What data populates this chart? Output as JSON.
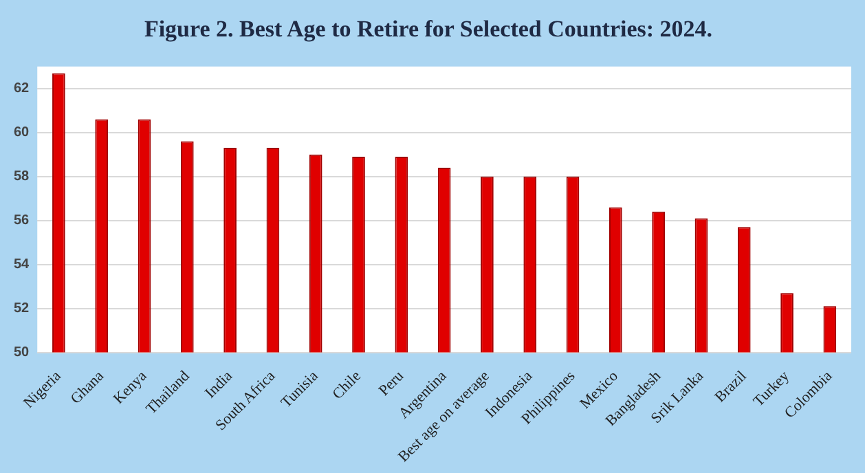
{
  "chart_data": {
    "type": "bar",
    "title": "Figure 2. Best Age to Retire for Selected Countries: 2024.",
    "categories": [
      "Nigeria",
      "Ghana",
      "Kenya",
      "Thailand",
      "India",
      "South Africa",
      "Tunisia",
      "Chile",
      "Peru",
      "Argentina",
      "Best age on average",
      "Indonesia",
      "Philippines",
      "Mexico",
      "Bangladesh",
      "Srik Lanka",
      "Brazil",
      "Turkey",
      "Colombia"
    ],
    "values": [
      62.7,
      60.6,
      60.6,
      59.6,
      59.3,
      59.3,
      59.0,
      58.9,
      58.9,
      58.4,
      58.0,
      58.0,
      58.0,
      56.6,
      56.4,
      56.1,
      55.7,
      52.7,
      52.1
    ],
    "color": "#e00000",
    "ylim": [
      50,
      63
    ],
    "yticks": [
      50,
      52,
      54,
      56,
      58,
      60,
      62
    ],
    "grid": "y"
  }
}
